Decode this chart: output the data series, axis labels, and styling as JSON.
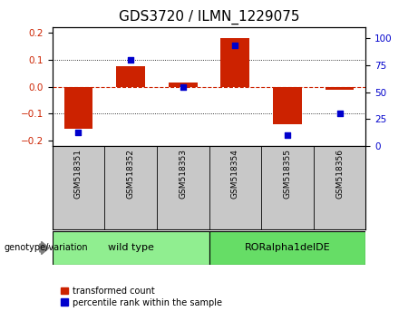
{
  "title": "GDS3720 / ILMN_1229075",
  "samples": [
    "GSM518351",
    "GSM518352",
    "GSM518353",
    "GSM518354",
    "GSM518355",
    "GSM518356"
  ],
  "red_values": [
    -0.155,
    0.075,
    0.015,
    0.18,
    -0.14,
    -0.01
  ],
  "blue_percentiles": [
    13,
    80,
    55,
    93,
    10,
    30
  ],
  "ylim_left": [
    -0.22,
    0.22
  ],
  "ylim_right": [
    0,
    110
  ],
  "yticks_left": [
    -0.2,
    -0.1,
    0.0,
    0.1,
    0.2
  ],
  "yticks_right": [
    0,
    25,
    50,
    75,
    100
  ],
  "group_label": "genotype/variation",
  "red_color": "#CC2200",
  "blue_color": "#0000CC",
  "bar_width": 0.55,
  "group_defs": [
    {
      "label": "wild type",
      "start": 0,
      "end": 2,
      "color": "#90EE90"
    },
    {
      "label": "RORalpha1delDE",
      "start": 3,
      "end": 5,
      "color": "#66DD66"
    }
  ],
  "legend_labels": [
    "transformed count",
    "percentile rank within the sample"
  ],
  "title_fontsize": 11,
  "tick_fontsize": 7.5,
  "sample_fontsize": 6.5,
  "group_fontsize": 8,
  "legend_fontsize": 7
}
